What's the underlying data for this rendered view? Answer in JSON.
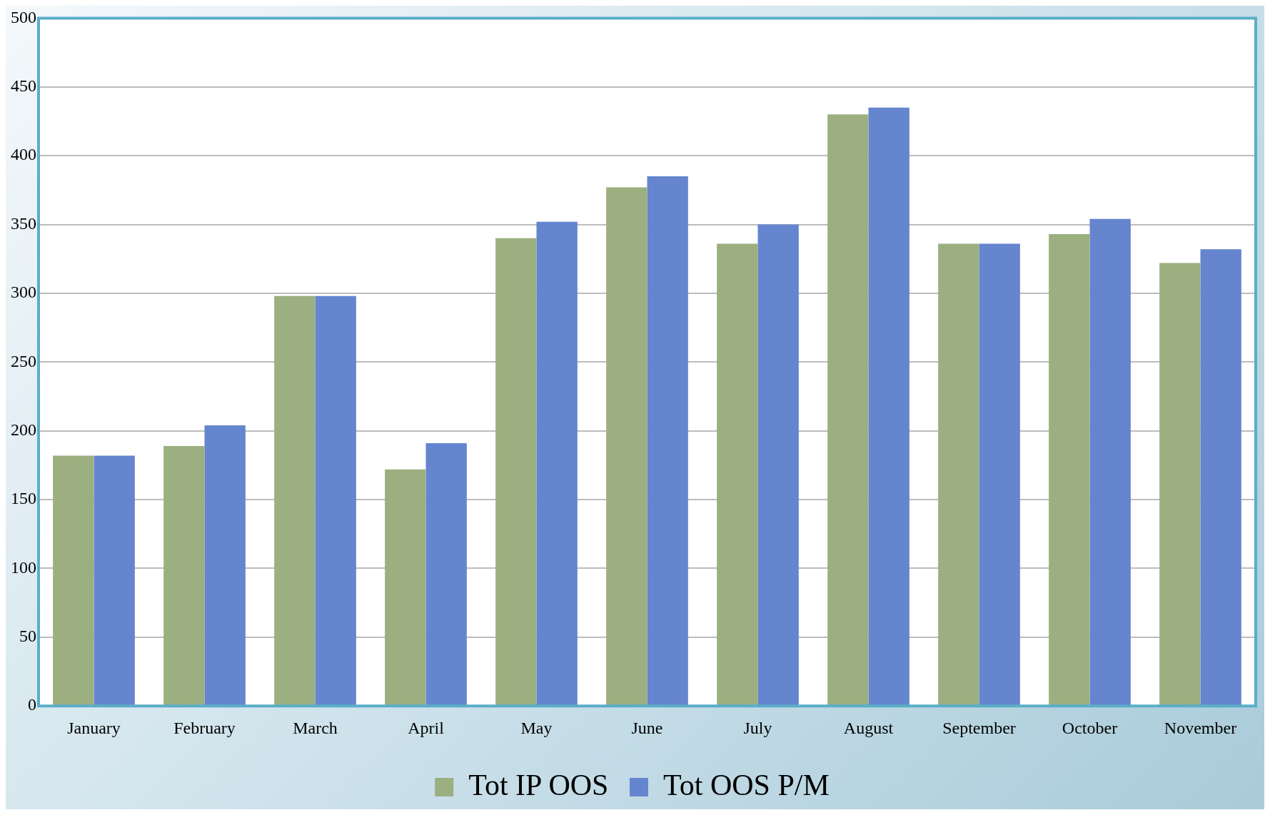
{
  "chart_data": {
    "type": "bar",
    "categories": [
      "January",
      "February",
      "March",
      "April",
      "May",
      "June",
      "July",
      "August",
      "September",
      "October",
      "November"
    ],
    "series": [
      {
        "name": "Tot IP OOS",
        "color": "#9caf80",
        "values": [
          182,
          189,
          298,
          172,
          340,
          377,
          336,
          430,
          336,
          343,
          322
        ]
      },
      {
        "name": "Tot OOS P/M",
        "color": "#6585cf",
        "values": [
          182,
          204,
          298,
          191,
          352,
          385,
          350,
          435,
          336,
          354,
          332
        ]
      }
    ],
    "ylim": [
      0,
      500
    ],
    "yticks": [
      0,
      50,
      100,
      150,
      200,
      250,
      300,
      350,
      400,
      450,
      500
    ],
    "grid": "y",
    "legend": "bottom"
  }
}
